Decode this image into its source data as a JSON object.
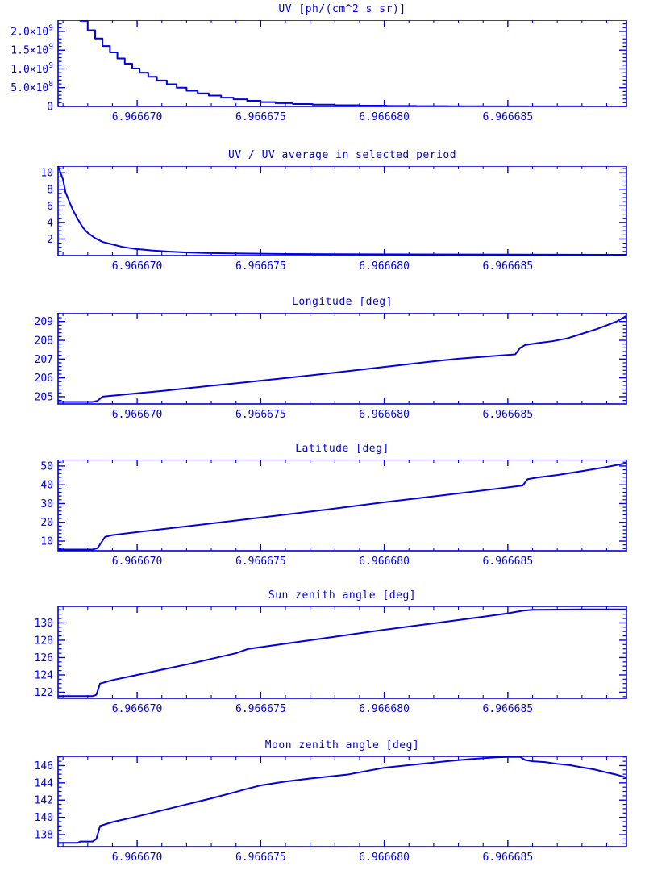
{
  "page": {
    "background": "#ffffff",
    "accent": "#0202dd",
    "line_color": "#0202e0"
  },
  "x_axis_note": "shared time axis; series x values stored as (t - 6.9666) * 1e6, e.g. 70 = 6.966670",
  "chart_data": [
    {
      "type": "line",
      "title": "UV [ph/(cm^2 s sr)]",
      "xlabel": "",
      "ylabel": "",
      "step": true,
      "x_range": [
        66.8,
        89.8
      ],
      "x_minor_step": 1,
      "x_ticks": [
        {
          "v": 70,
          "label": "6.966670"
        },
        {
          "v": 75,
          "label": "6.966675"
        },
        {
          "v": 80,
          "label": "6.966680"
        },
        {
          "v": 85,
          "label": "6.966685"
        }
      ],
      "y_range": [
        0,
        2300000000.0
      ],
      "y_minor_div": 5,
      "y_ticks": [
        {
          "v": 0,
          "label": "0"
        },
        {
          "v": 500000000.0,
          "label": "5.0×10^8"
        },
        {
          "v": 1000000000.0,
          "label": "1.0×10^9"
        },
        {
          "v": 1500000000.0,
          "label": "1.5×10^9"
        },
        {
          "v": 2000000000.0,
          "label": "2.0×10^9"
        }
      ],
      "points": [
        [
          67.35,
          2600000000.0
        ],
        [
          67.7,
          2280000000.0
        ],
        [
          68.0,
          2030000000.0
        ],
        [
          68.3,
          1810000000.0
        ],
        [
          68.6,
          1610000000.0
        ],
        [
          68.9,
          1440000000.0
        ],
        [
          69.2,
          1280000000.0
        ],
        [
          69.5,
          1140000000.0
        ],
        [
          69.8,
          1010000000.0
        ],
        [
          70.1,
          900000000.0
        ],
        [
          70.45,
          790000000.0
        ],
        [
          70.8,
          690000000.0
        ],
        [
          71.2,
          590000000.0
        ],
        [
          71.6,
          500000000.0
        ],
        [
          72.0,
          420000000.0
        ],
        [
          72.45,
          350000000.0
        ],
        [
          72.9,
          290000000.0
        ],
        [
          73.4,
          235000000.0
        ],
        [
          73.9,
          190000000.0
        ],
        [
          74.45,
          150000000.0
        ],
        [
          75.0,
          115000000.0
        ],
        [
          75.6,
          88000000.0
        ],
        [
          76.3,
          65000000.0
        ],
        [
          77.1,
          47000000.0
        ],
        [
          78.0,
          33000000.0
        ],
        [
          79.0,
          22000000.0
        ],
        [
          80.1,
          14000000.0
        ],
        [
          81.3,
          9000000.0
        ],
        [
          82.6,
          5000000.0
        ],
        [
          84.0,
          3000000.0
        ],
        [
          86.0,
          1500000.0
        ],
        [
          88.0,
          800000.0
        ],
        [
          89.8,
          500000.0
        ]
      ]
    },
    {
      "type": "line",
      "title": "UV / UV average in selected period",
      "xlabel": "",
      "ylabel": "",
      "step": false,
      "x_range": [
        66.8,
        89.8
      ],
      "x_minor_step": 1,
      "x_ticks": [
        {
          "v": 70,
          "label": "6.966670"
        },
        {
          "v": 75,
          "label": "6.966675"
        },
        {
          "v": 80,
          "label": "6.966680"
        },
        {
          "v": 85,
          "label": "6.966685"
        }
      ],
      "y_range": [
        0,
        10.8
      ],
      "y_minor_div": 4,
      "y_ticks": [
        {
          "v": 2,
          "label": "2"
        },
        {
          "v": 4,
          "label": "4"
        },
        {
          "v": 6,
          "label": "6"
        },
        {
          "v": 8,
          "label": "8"
        },
        {
          "v": 10,
          "label": "10"
        }
      ],
      "points": [
        [
          66.8,
          10.8
        ],
        [
          67.0,
          9.2
        ],
        [
          67.1,
          7.65
        ],
        [
          67.3,
          6.2
        ],
        [
          67.4,
          5.5
        ],
        [
          67.6,
          4.4
        ],
        [
          67.8,
          3.4
        ],
        [
          68.0,
          2.75
        ],
        [
          68.3,
          2.1
        ],
        [
          68.6,
          1.65
        ],
        [
          69.0,
          1.35
        ],
        [
          69.4,
          1.05
        ],
        [
          69.9,
          0.82
        ],
        [
          70.6,
          0.62
        ],
        [
          71.2,
          0.5
        ],
        [
          72.0,
          0.38
        ],
        [
          73.0,
          0.3
        ],
        [
          74.5,
          0.24
        ],
        [
          76.0,
          0.2
        ],
        [
          78.0,
          0.17
        ],
        [
          81.0,
          0.14
        ],
        [
          85.0,
          0.12
        ],
        [
          89.8,
          0.1
        ]
      ]
    },
    {
      "type": "line",
      "title": "Longitude [deg]",
      "xlabel": "",
      "ylabel": "",
      "step": false,
      "x_range": [
        66.8,
        89.8
      ],
      "x_minor_step": 1,
      "x_ticks": [
        {
          "v": 70,
          "label": "6.966670"
        },
        {
          "v": 75,
          "label": "6.966675"
        },
        {
          "v": 80,
          "label": "6.966680"
        },
        {
          "v": 85,
          "label": "6.966685"
        }
      ],
      "y_range": [
        204.61,
        209.46
      ],
      "y_minor_div": 5,
      "y_ticks": [
        {
          "v": 205,
          "label": "205"
        },
        {
          "v": 206,
          "label": "206"
        },
        {
          "v": 207,
          "label": "207"
        },
        {
          "v": 208,
          "label": "208"
        },
        {
          "v": 209,
          "label": "209"
        }
      ],
      "points": [
        [
          66.8,
          204.72
        ],
        [
          68.2,
          204.72
        ],
        [
          68.4,
          204.78
        ],
        [
          68.6,
          205.0
        ],
        [
          69.0,
          205.05
        ],
        [
          70.0,
          205.18
        ],
        [
          71.0,
          205.3
        ],
        [
          72.0,
          205.44
        ],
        [
          73.0,
          205.58
        ],
        [
          74.0,
          205.71
        ],
        [
          75.0,
          205.85
        ],
        [
          76.0,
          205.99
        ],
        [
          77.0,
          206.13
        ],
        [
          78.0,
          206.28
        ],
        [
          79.0,
          206.43
        ],
        [
          80.0,
          206.58
        ],
        [
          81.0,
          206.73
        ],
        [
          82.0,
          206.88
        ],
        [
          83.0,
          207.02
        ],
        [
          84.0,
          207.12
        ],
        [
          84.8,
          207.2
        ],
        [
          85.3,
          207.25
        ],
        [
          85.5,
          207.6
        ],
        [
          85.7,
          207.75
        ],
        [
          86.2,
          207.85
        ],
        [
          86.8,
          207.95
        ],
        [
          87.4,
          208.1
        ],
        [
          88.0,
          208.35
        ],
        [
          88.6,
          208.6
        ],
        [
          89.0,
          208.8
        ],
        [
          89.4,
          209.0
        ],
        [
          89.8,
          209.3
        ]
      ]
    },
    {
      "type": "line",
      "title": "Latitude [deg]",
      "xlabel": "",
      "ylabel": "",
      "step": false,
      "x_range": [
        66.8,
        89.8
      ],
      "x_minor_step": 1,
      "x_ticks": [
        {
          "v": 70,
          "label": "6.966670"
        },
        {
          "v": 75,
          "label": "6.966675"
        },
        {
          "v": 80,
          "label": "6.966680"
        },
        {
          "v": 85,
          "label": "6.966685"
        }
      ],
      "y_range": [
        4.85,
        53.4
      ],
      "y_minor_div": 5,
      "y_ticks": [
        {
          "v": 10,
          "label": "10"
        },
        {
          "v": 20,
          "label": "20"
        },
        {
          "v": 30,
          "label": "30"
        },
        {
          "v": 40,
          "label": "40"
        },
        {
          "v": 50,
          "label": "50"
        }
      ],
      "points": [
        [
          66.8,
          5.5
        ],
        [
          68.2,
          5.5
        ],
        [
          68.4,
          6.3
        ],
        [
          68.7,
          12.2
        ],
        [
          69.0,
          13.2
        ],
        [
          70.0,
          14.8
        ],
        [
          72.5,
          18.6
        ],
        [
          75.0,
          22.5
        ],
        [
          77.5,
          26.5
        ],
        [
          80.0,
          30.7
        ],
        [
          82.5,
          34.6
        ],
        [
          84.5,
          37.8
        ],
        [
          85.3,
          39.1
        ],
        [
          85.6,
          39.6
        ],
        [
          85.8,
          43.0
        ],
        [
          86.2,
          43.9
        ],
        [
          87.0,
          45.2
        ],
        [
          88.0,
          47.3
        ],
        [
          89.0,
          49.5
        ],
        [
          89.8,
          51.5
        ]
      ]
    },
    {
      "type": "line",
      "title": "Sun zenith angle [deg]",
      "xlabel": "",
      "ylabel": "",
      "step": false,
      "x_range": [
        66.8,
        89.8
      ],
      "x_minor_step": 1,
      "x_ticks": [
        {
          "v": 70,
          "label": "6.966670"
        },
        {
          "v": 75,
          "label": "6.966675"
        },
        {
          "v": 80,
          "label": "6.966680"
        },
        {
          "v": 85,
          "label": "6.966685"
        }
      ],
      "y_range": [
        121.3,
        131.9
      ],
      "y_minor_div": 4,
      "y_ticks": [
        {
          "v": 122,
          "label": "122"
        },
        {
          "v": 124,
          "label": "124"
        },
        {
          "v": 126,
          "label": "126"
        },
        {
          "v": 128,
          "label": "128"
        },
        {
          "v": 130,
          "label": "130"
        }
      ],
      "points": [
        [
          66.8,
          121.55
        ],
        [
          68.2,
          121.55
        ],
        [
          68.35,
          121.7
        ],
        [
          68.5,
          123.0
        ],
        [
          69.0,
          123.4
        ],
        [
          70.0,
          124.0
        ],
        [
          71.0,
          124.6
        ],
        [
          72.0,
          125.2
        ],
        [
          73.0,
          125.85
        ],
        [
          74.0,
          126.5
        ],
        [
          74.5,
          127.0
        ],
        [
          76.0,
          127.6
        ],
        [
          78.0,
          128.4
        ],
        [
          80.0,
          129.2
        ],
        [
          82.0,
          129.95
        ],
        [
          84.0,
          130.7
        ],
        [
          85.0,
          131.1
        ],
        [
          85.6,
          131.4
        ],
        [
          86.0,
          131.5
        ],
        [
          88.0,
          131.55
        ],
        [
          89.8,
          131.55
        ]
      ]
    },
    {
      "type": "line",
      "title": "Moon zenith angle [deg]",
      "xlabel": "",
      "ylabel": "",
      "step": false,
      "x_range": [
        66.8,
        89.8
      ],
      "x_minor_step": 1,
      "x_ticks": [
        {
          "v": 70,
          "label": "6.966670"
        },
        {
          "v": 75,
          "label": "6.966675"
        },
        {
          "v": 80,
          "label": "6.966680"
        },
        {
          "v": 85,
          "label": "6.966685"
        }
      ],
      "y_range": [
        136.6,
        147.07
      ],
      "y_minor_div": 4,
      "y_ticks": [
        {
          "v": 138,
          "label": "138"
        },
        {
          "v": 140,
          "label": "140"
        },
        {
          "v": 142,
          "label": "142"
        },
        {
          "v": 144,
          "label": "144"
        },
        {
          "v": 146,
          "label": "146"
        }
      ],
      "points": [
        [
          66.8,
          137.05
        ],
        [
          67.6,
          137.05
        ],
        [
          67.7,
          137.2
        ],
        [
          68.2,
          137.2
        ],
        [
          68.35,
          137.5
        ],
        [
          68.5,
          139.0
        ],
        [
          69.0,
          139.45
        ],
        [
          70.0,
          140.1
        ],
        [
          71.0,
          140.8
        ],
        [
          72.0,
          141.5
        ],
        [
          73.0,
          142.2
        ],
        [
          74.0,
          142.95
        ],
        [
          74.5,
          143.35
        ],
        [
          75.0,
          143.7
        ],
        [
          76.0,
          144.15
        ],
        [
          77.0,
          144.5
        ],
        [
          77.5,
          144.65
        ],
        [
          78.5,
          144.95
        ],
        [
          80.0,
          145.75
        ],
        [
          81.0,
          146.05
        ],
        [
          82.5,
          146.5
        ],
        [
          83.5,
          146.75
        ],
        [
          84.5,
          146.95
        ],
        [
          85.0,
          147.0
        ],
        [
          85.5,
          147.0
        ],
        [
          85.7,
          146.65
        ],
        [
          86.0,
          146.5
        ],
        [
          86.5,
          146.4
        ],
        [
          87.0,
          146.2
        ],
        [
          87.5,
          146.05
        ],
        [
          88.0,
          145.8
        ],
        [
          88.5,
          145.55
        ],
        [
          89.0,
          145.2
        ],
        [
          89.4,
          144.95
        ],
        [
          89.8,
          144.6
        ]
      ]
    }
  ]
}
